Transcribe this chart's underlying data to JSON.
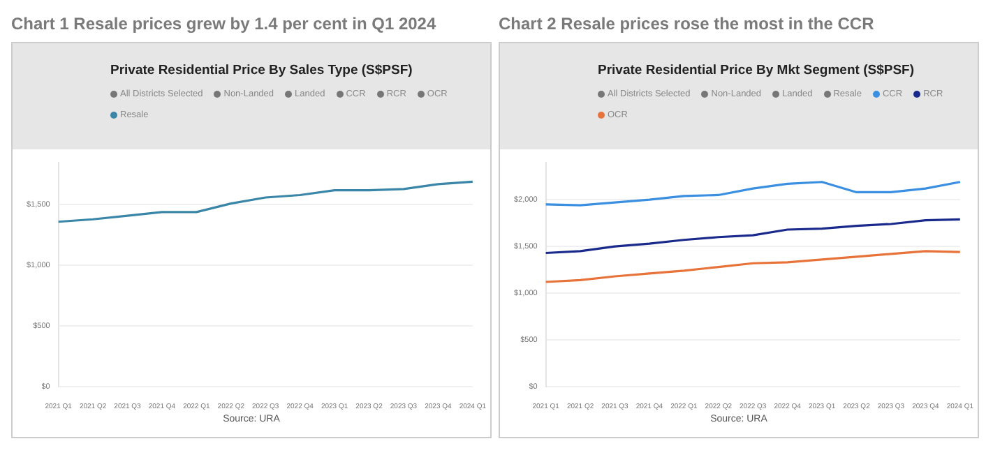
{
  "chart_data": [
    {
      "type": "line",
      "title": "Chart 1 Resale prices grew by 1.4 per cent in Q1 2024",
      "subtitle": "Private Residential Price By Sales Type (S$PSF)",
      "categories": [
        "2021 Q1",
        "2021 Q2",
        "2021 Q3",
        "2021 Q4",
        "2022 Q1",
        "2022 Q2",
        "2022 Q3",
        "2022 Q4",
        "2023 Q1",
        "2023 Q2",
        "2023 Q3",
        "2023 Q4",
        "2024 Q1"
      ],
      "series": [
        {
          "name": "Resale",
          "color": "#3a86a8",
          "values": [
            1360,
            1380,
            1410,
            1440,
            1440,
            1510,
            1560,
            1580,
            1620,
            1620,
            1630,
            1670,
            1690
          ]
        }
      ],
      "ylim": [
        0,
        1850
      ],
      "yticks": [
        {
          "value": 0,
          "label": "$0"
        },
        {
          "value": 500,
          "label": "$500"
        },
        {
          "value": 1000,
          "label": "$1,000"
        },
        {
          "value": 1500,
          "label": "$1,500"
        }
      ],
      "grid": "y",
      "legend": "top",
      "marker": "none",
      "line_style": "solid",
      "annotations": [
        "All Districts Selected",
        "Non-Landed",
        "Landed",
        "CCR",
        "RCR",
        "OCR",
        "Source: URA"
      ]
    },
    {
      "type": "line",
      "title": "Chart 2 Resale prices rose the most in the CCR",
      "subtitle": "Private Residential Price By Mkt Segment (S$PSF)",
      "categories": [
        "2021 Q1",
        "2021 Q2",
        "2021 Q3",
        "2021 Q4",
        "2022 Q1",
        "2022 Q2",
        "2022 Q3",
        "2022 Q4",
        "2023 Q1",
        "2023 Q2",
        "2023 Q3",
        "2023 Q4",
        "2024 Q1"
      ],
      "series": [
        {
          "name": "CCR",
          "color": "#3a8fe0",
          "values": [
            1950,
            1940,
            1970,
            2000,
            2040,
            2050,
            2120,
            2170,
            2190,
            2080,
            2080,
            2120,
            2190
          ]
        },
        {
          "name": "RCR",
          "color": "#1a2a8c",
          "values": [
            1430,
            1450,
            1500,
            1530,
            1570,
            1600,
            1620,
            1680,
            1690,
            1720,
            1740,
            1780,
            1790
          ]
        },
        {
          "name": "OCR",
          "color": "#e8733a",
          "values": [
            1120,
            1140,
            1180,
            1210,
            1240,
            1280,
            1320,
            1330,
            1360,
            1390,
            1420,
            1450,
            1440
          ]
        }
      ],
      "ylim": [
        0,
        2400
      ],
      "yticks": [
        {
          "value": 0,
          "label": "$0"
        },
        {
          "value": 500,
          "label": "$500"
        },
        {
          "value": 1000,
          "label": "$1,000"
        },
        {
          "value": 1500,
          "label": "$1,500"
        },
        {
          "value": 2000,
          "label": "$2,000"
        }
      ],
      "grid": "y",
      "legend": "top",
      "marker": "none",
      "line_style": "solid",
      "annotations": [
        "All Districts Selected",
        "Non-Landed",
        "Landed",
        "Resale",
        "Source: URA"
      ]
    }
  ]
}
